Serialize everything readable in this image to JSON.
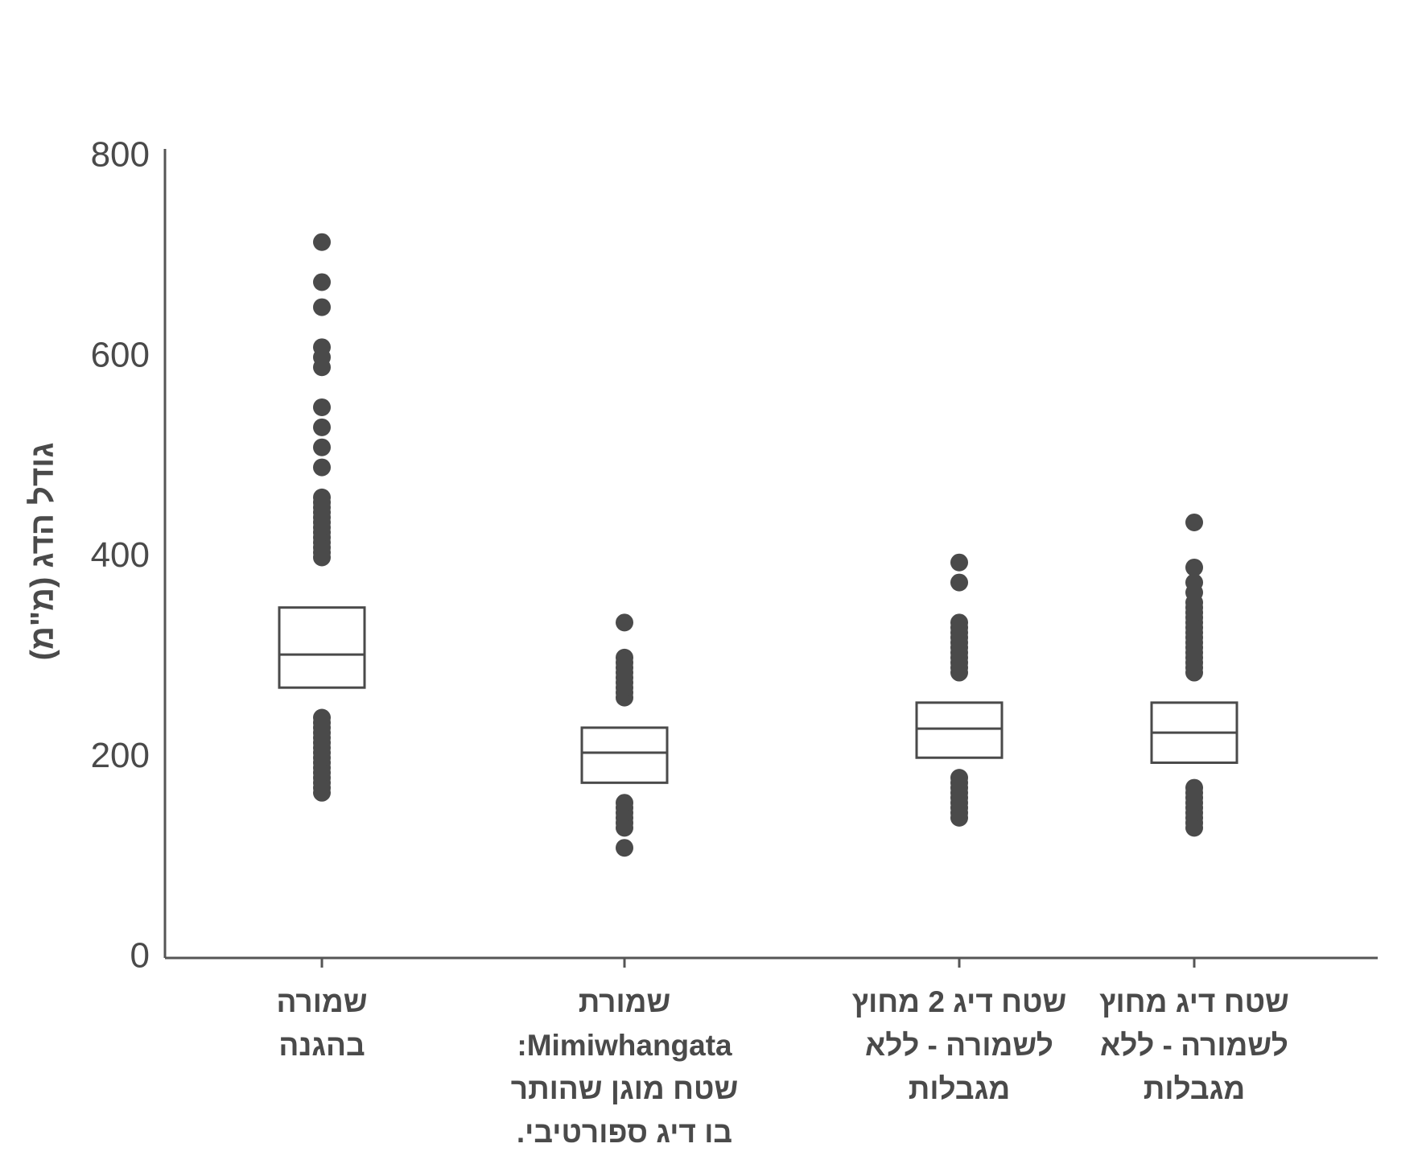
{
  "chart_data": {
    "type": "boxplot",
    "title": "",
    "ylabel": "גודל הדג (מ\"מ)",
    "xlabel": "",
    "ylim": [
      0,
      800
    ],
    "yticks": [
      0,
      200,
      400,
      600,
      800
    ],
    "grid": false,
    "legend": "none",
    "colors": {
      "ink": "#4a4a4a",
      "axis": "#555555"
    },
    "categories": [
      {
        "label_lines": [
          "שמורה",
          "בהגנה"
        ]
      },
      {
        "label_lines": [
          "שמורת",
          "Mimiwhangata:",
          "שטח מוגן שהותר",
          "בו דיג ספורטיבי."
        ]
      },
      {
        "label_lines": [
          "שטח דיג 2 מחוץ",
          "לשמורה - ללא",
          "מגבלות"
        ]
      },
      {
        "label_lines": [
          "שטח דיג מחוץ",
          "לשמורה - ללא",
          "מגבלות"
        ]
      }
    ],
    "boxes": [
      {
        "q1": 270,
        "median": 303,
        "q3": 350,
        "outliers": [
          165,
          170,
          175,
          180,
          185,
          190,
          195,
          200,
          205,
          210,
          215,
          220,
          225,
          230,
          235,
          240,
          400,
          405,
          410,
          415,
          420,
          425,
          430,
          435,
          440,
          445,
          450,
          455,
          460,
          490,
          510,
          530,
          550,
          590,
          600,
          610,
          650,
          675,
          715
        ]
      },
      {
        "q1": 175,
        "median": 205,
        "q3": 230,
        "outliers": [
          110,
          130,
          135,
          140,
          145,
          150,
          155,
          260,
          265,
          270,
          275,
          280,
          285,
          290,
          295,
          300,
          335
        ]
      },
      {
        "q1": 200,
        "median": 229,
        "q3": 255,
        "outliers": [
          140,
          145,
          150,
          155,
          160,
          165,
          170,
          175,
          180,
          285,
          290,
          295,
          300,
          305,
          310,
          315,
          320,
          325,
          330,
          335,
          375,
          395
        ]
      },
      {
        "q1": 195,
        "median": 225,
        "q3": 255,
        "outliers": [
          130,
          135,
          140,
          145,
          150,
          155,
          160,
          165,
          170,
          285,
          290,
          295,
          300,
          305,
          310,
          315,
          320,
          325,
          330,
          335,
          340,
          345,
          350,
          355,
          365,
          375,
          390,
          435
        ]
      }
    ]
  }
}
